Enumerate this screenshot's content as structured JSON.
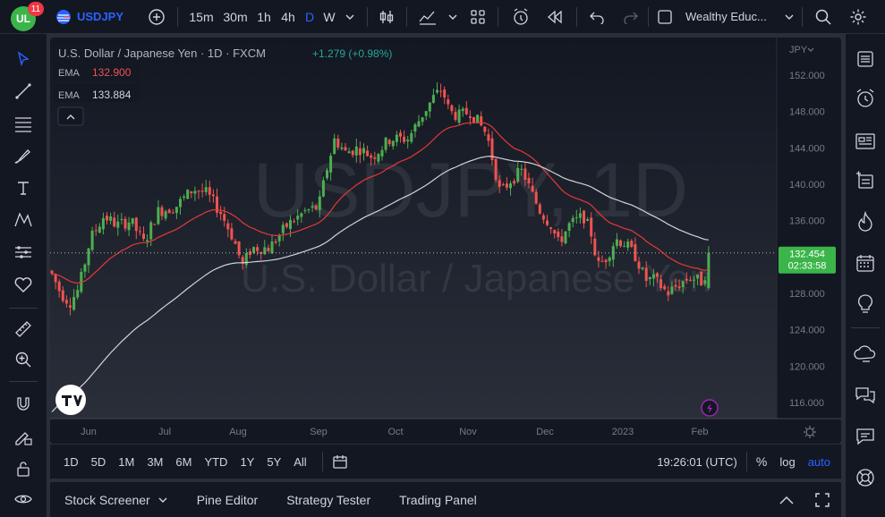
{
  "header": {
    "avatar_initials": "UL",
    "notification_count": "11",
    "symbol": "USDJPY",
    "intervals": [
      "15m",
      "30m",
      "1h",
      "4h",
      "D",
      "W"
    ],
    "active_interval": "D",
    "layout_name": "Wealthy Educ..."
  },
  "legend": {
    "title": "U.S. Dollar / Japanese Yen · 1D · FXCM",
    "change": "+1.279 (+0.98%)",
    "ema1_label": "EMA",
    "ema1_value": "132.900",
    "ema2_label": "EMA",
    "ema2_value": "133.884"
  },
  "watermark": {
    "symbol": "USDJPY, 1D",
    "name": "U.S. Dollar / Japanese Yen"
  },
  "price_scale": {
    "currency": "JPY",
    "ticks": [
      "152.000",
      "148.000",
      "144.000",
      "140.000",
      "136.000",
      "132.000",
      "128.000",
      "124.000",
      "120.000",
      "116.000"
    ],
    "current_price": "132.454",
    "countdown": "02:33:58"
  },
  "time_axis": {
    "labels": [
      "Jun",
      "Jul",
      "Aug",
      "Sep",
      "Oct",
      "Nov",
      "Dec",
      "2023",
      "Feb"
    ]
  },
  "range_bar": {
    "ranges": [
      "1D",
      "5D",
      "1M",
      "3M",
      "6M",
      "YTD",
      "1Y",
      "5Y",
      "All"
    ],
    "clock": "19:26:01 (UTC)",
    "percent": "%",
    "log": "log",
    "auto": "auto"
  },
  "bottom_panel": {
    "tabs": [
      "Stock Screener",
      "Pine Editor",
      "Strategy Tester",
      "Trading Panel"
    ]
  },
  "colors": {
    "up": "#26a69a",
    "up_alt": "#4caf50",
    "down": "#ef5350",
    "ema_red": "#e53935",
    "ema_white": "#d1d4dc",
    "accent": "#2962ff",
    "price_tag": "#3bb54a"
  },
  "chart_data": {
    "type": "candlestick",
    "symbol": "USDJPY",
    "interval": "1D",
    "ylim": [
      113,
      154
    ],
    "approx_close_path": [
      {
        "month": "Jun",
        "close": 127.5
      },
      {
        "month": "Jul",
        "close": 136.0
      },
      {
        "month": "Aug",
        "close": 133.0
      },
      {
        "month": "Sep",
        "close": 144.5
      },
      {
        "month": "Oct",
        "close": 146.5
      },
      {
        "month": "Nov",
        "close": 145.0
      },
      {
        "month": "Dec",
        "close": 135.5
      },
      {
        "month": "2023",
        "close": 130.5
      },
      {
        "month": "Feb",
        "close": 132.454
      }
    ],
    "high": 151.9,
    "low": 126.4,
    "last": 132.454,
    "ema_fast_last": 132.9,
    "ema_slow_last": 133.884
  }
}
